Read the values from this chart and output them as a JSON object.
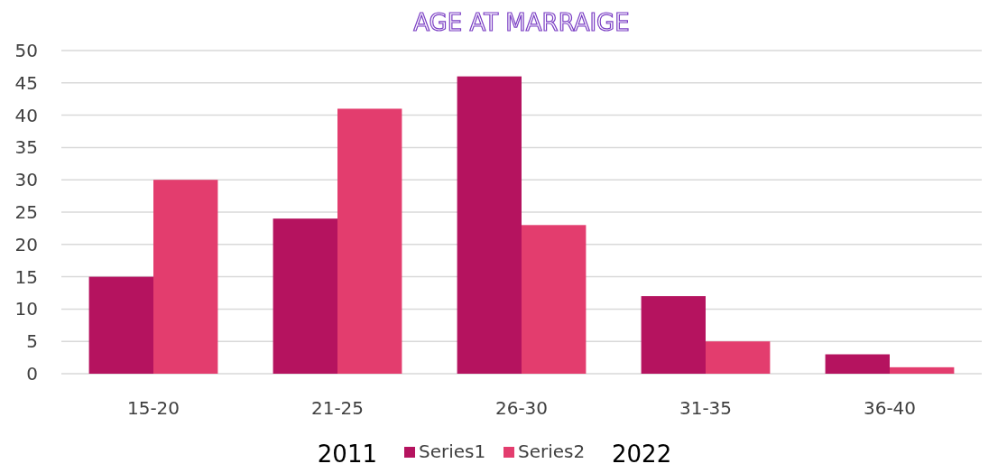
{
  "chart_data": {
    "type": "bar",
    "title": "AGE AT MARRAIGE",
    "categories": [
      "15-20",
      "21-25",
      "26-30",
      "31-35",
      "36-40"
    ],
    "series": [
      {
        "name": "Series1",
        "color": "#b5135f",
        "values": [
          15,
          24,
          46,
          12,
          3
        ]
      },
      {
        "name": "Series2",
        "color": "#e33d6e",
        "values": [
          30,
          41,
          23,
          5,
          1
        ]
      }
    ],
    "ylim": [
      0,
      50
    ],
    "yticks": [
      0,
      5,
      10,
      15,
      20,
      25,
      30,
      35,
      40,
      45,
      50
    ],
    "grid": "y",
    "legend": "bottom",
    "annotations": [
      "2011",
      "2022"
    ]
  }
}
